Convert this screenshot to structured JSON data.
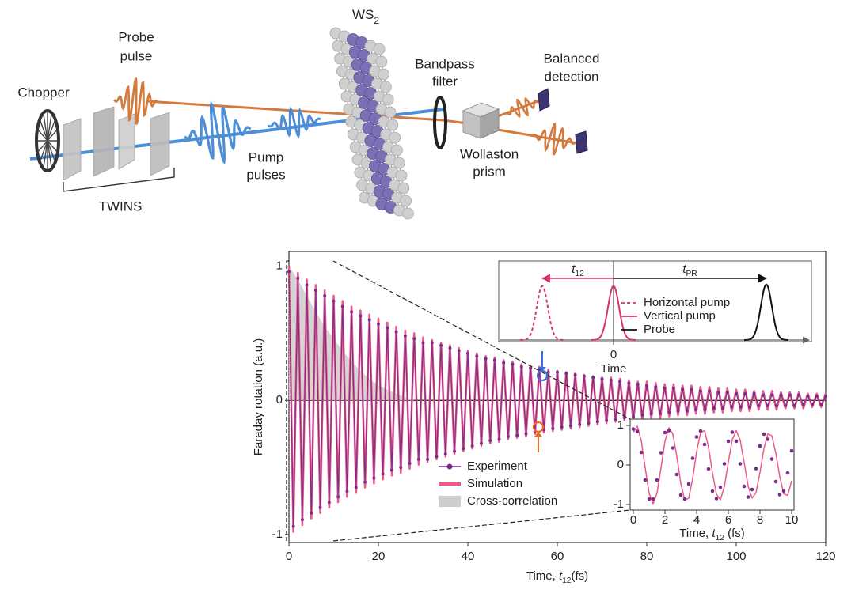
{
  "diagram": {
    "probe_pulse": [
      "Probe",
      "pulse"
    ],
    "chopper": "Chopper",
    "twins": "TWINS",
    "pump_pulses": [
      "Pump",
      "pulses"
    ],
    "ws2": {
      "text": "WS",
      "subscript": "2"
    },
    "bandpass_filter": [
      "Bandpass",
      "filter"
    ],
    "balanced_detection": [
      "Balanced",
      "detection"
    ],
    "wollaston_prism": [
      "Wollaston",
      "prism"
    ]
  },
  "chart_data": [
    {
      "type": "line",
      "ylabel": "Faraday rotation (a.u.)",
      "xlabel": {
        "text": "Time, ",
        "symbol": "t",
        "subscript": "12",
        "unit": "(fs)"
      },
      "x": [
        0,
        1,
        2,
        3,
        4,
        5,
        6,
        7,
        8,
        9,
        10,
        11,
        12,
        13,
        14,
        15,
        16,
        17,
        18,
        19,
        20,
        21,
        22,
        23,
        24,
        25,
        26,
        27,
        28,
        29,
        30,
        31,
        32,
        33,
        34,
        35,
        36,
        37,
        38,
        39,
        40,
        41,
        42,
        43,
        44,
        45,
        46,
        47,
        48,
        49,
        50,
        51,
        52,
        53,
        54,
        55,
        56,
        57,
        58,
        59,
        60,
        61,
        62,
        63,
        64,
        65,
        66,
        67,
        68,
        69,
        70,
        71,
        72,
        73,
        74,
        75,
        76,
        77,
        78,
        79,
        80,
        81,
        82,
        83,
        84,
        85,
        86,
        87,
        88,
        89,
        90,
        91,
        92,
        93,
        94,
        95,
        96,
        97,
        98,
        99,
        100,
        101,
        102,
        103,
        104,
        105,
        106,
        107,
        108,
        109,
        110,
        111,
        112,
        113,
        114,
        115,
        116,
        117,
        118,
        119,
        120
      ],
      "xlim": [
        0,
        120
      ],
      "xticks": [
        0,
        20,
        40,
        60,
        80,
        100,
        120
      ],
      "ylim": [
        -1.06,
        1.11
      ],
      "yticks": [
        -1,
        0,
        1
      ],
      "zero_line": true,
      "legend": "lower center",
      "series": [
        {
          "name": "Experiment",
          "color": "#7b2d8e",
          "style": "line+markers",
          "values": [
            0.96,
            -0.94,
            0.91,
            -0.89,
            0.86,
            -0.84,
            0.82,
            -0.8,
            0.78,
            -0.76,
            0.74,
            -0.72,
            0.7,
            -0.68,
            0.66,
            -0.65,
            0.63,
            -0.61,
            0.6,
            -0.58,
            0.57,
            -0.55,
            0.54,
            -0.52,
            0.51,
            -0.5,
            0.48,
            -0.47,
            0.46,
            -0.44,
            0.43,
            -0.44,
            0.43,
            -0.42,
            0.41,
            -0.4,
            0.39,
            -0.38,
            0.37,
            -0.36,
            0.35,
            -0.34,
            0.33,
            -0.32,
            0.31,
            -0.3,
            0.3,
            -0.29,
            0.28,
            -0.27,
            0.27,
            -0.26,
            0.25,
            -0.25,
            0.24,
            -0.23,
            0.23,
            -0.22,
            0.21,
            -0.21,
            0.21,
            -0.2,
            0.2,
            -0.19,
            0.19,
            -0.18,
            0.18,
            -0.17,
            0.17,
            -0.16,
            0.16,
            -0.15,
            0.15,
            -0.14,
            0.14,
            -0.13,
            0.13,
            -0.12,
            0.12,
            -0.11,
            0.11,
            -0.1,
            0.1,
            -0.1,
            0.09,
            -0.09,
            0.09,
            -0.08,
            0.08,
            -0.08,
            0.08,
            -0.07,
            0.07,
            -0.07,
            0.07,
            -0.06,
            0.06,
            -0.06,
            0.06,
            -0.05,
            0.05,
            -0.05,
            0.05,
            -0.05,
            0.05,
            -0.04,
            0.04,
            -0.04,
            0.04,
            -0.04,
            0.04,
            -0.04,
            0.04,
            -0.04,
            0.04,
            -0.03,
            0.03,
            -0.03,
            0.03,
            -0.03,
            0.03
          ]
        },
        {
          "name": "Simulation",
          "color": "#ec5a85",
          "style": "line",
          "values": [
            1.0,
            -0.98,
            0.95,
            -0.93,
            0.9,
            -0.88,
            0.86,
            -0.84,
            0.82,
            -0.8,
            0.78,
            -0.76,
            0.74,
            -0.72,
            0.7,
            -0.69,
            0.67,
            -0.65,
            0.64,
            -0.62,
            0.61,
            -0.59,
            0.58,
            -0.56,
            0.55,
            -0.54,
            0.52,
            -0.51,
            0.5,
            -0.48,
            0.47,
            -0.46,
            0.45,
            -0.44,
            0.43,
            -0.42,
            0.41,
            -0.4,
            0.39,
            -0.38,
            0.37,
            -0.36,
            0.35,
            -0.34,
            0.33,
            -0.32,
            0.32,
            -0.31,
            0.3,
            -0.29,
            0.29,
            -0.28,
            0.27,
            -0.27,
            0.26,
            -0.25,
            0.25,
            -0.24,
            0.23,
            -0.23,
            0.22,
            -0.22,
            0.21,
            -0.21,
            0.2,
            -0.2,
            0.19,
            -0.19,
            0.18,
            -0.18,
            0.17,
            -0.17,
            0.17,
            -0.16,
            0.16,
            -0.15,
            0.15,
            -0.15,
            0.14,
            -0.14,
            0.14,
            -0.13,
            0.13,
            -0.13,
            0.12,
            -0.12,
            0.12,
            -0.11,
            0.11,
            -0.11,
            0.11,
            -0.1,
            0.1,
            -0.1,
            0.1,
            -0.09,
            0.09,
            -0.09,
            0.09,
            -0.08,
            0.08,
            -0.08,
            0.08,
            -0.08,
            0.07,
            -0.07,
            0.07,
            -0.07,
            0.07,
            -0.07,
            0.06,
            -0.06,
            0.06,
            -0.06,
            0.06,
            -0.06,
            0.05,
            -0.05,
            0.05,
            -0.05,
            0.05
          ]
        },
        {
          "name": "Cross-correlation",
          "color": "#cdcdcd",
          "style": "area",
          "x": [
            0,
            2,
            4,
            6,
            8,
            10,
            12,
            14,
            16,
            18,
            20,
            24,
            28
          ],
          "values": [
            1,
            0.9,
            0.78,
            0.66,
            0.55,
            0.46,
            0.37,
            0.29,
            0.22,
            0.16,
            0.11,
            0.05,
            0
          ]
        }
      ]
    },
    {
      "type": "pulse",
      "xlabel": "Time",
      "xlim": [
        -14,
        24.5
      ],
      "xticks": [
        0
      ],
      "ylim": [
        0,
        1
      ],
      "legend": "upper right",
      "annotations": [
        {
          "symbol": "t",
          "subscript": "12"
        },
        {
          "symbol": "t",
          "subscript": "PR"
        }
      ],
      "series": [
        {
          "name": "Horizontal pump",
          "color": "#d6336c",
          "dashed": true,
          "center": -9,
          "height": 0.76,
          "width": 0.7
        },
        {
          "name": "Vertical pump",
          "color": "#d6336c",
          "dashed": false,
          "center": 0,
          "height": 0.76,
          "width": 0.7
        },
        {
          "name": "Probe",
          "color": "#111111",
          "dashed": false,
          "center": 19.3,
          "height": 0.78,
          "width": 0.7
        }
      ]
    },
    {
      "type": "line",
      "xlabel": {
        "text": "Time, ",
        "symbol": "t",
        "subscript": "12",
        "unit": " (fs)"
      },
      "x": [
        0,
        0.25,
        0.5,
        0.75,
        1,
        1.25,
        1.5,
        1.75,
        2,
        2.25,
        2.5,
        2.75,
        3,
        3.25,
        3.5,
        3.75,
        4,
        4.25,
        4.5,
        4.75,
        5,
        5.25,
        5.5,
        5.75,
        6,
        6.25,
        6.5,
        6.75,
        7,
        7.25,
        7.5,
        7.75,
        8,
        8.25,
        8.5,
        8.75,
        9,
        9.25,
        9.5,
        9.75,
        10
      ],
      "xlim": [
        -0.2,
        10.15
      ],
      "xticks": [
        0,
        2,
        4,
        6,
        8,
        10
      ],
      "ylim": [
        -1.14,
        1.16
      ],
      "yticks": [
        -1,
        0,
        1
      ],
      "series": [
        {
          "color": "#ec5a85",
          "style": "line",
          "values": [
            0.83,
            0.98,
            0.62,
            -0.07,
            -0.72,
            -0.98,
            -0.71,
            -0.07,
            0.6,
            0.94,
            0.78,
            0.21,
            -0.47,
            -0.89,
            -0.84,
            -0.34,
            0.34,
            0.82,
            0.87,
            0.45,
            -0.2,
            -0.74,
            -0.88,
            -0.55,
            0.07,
            0.64,
            0.87,
            0.63,
            0.06,
            -0.53,
            -0.84,
            -0.7,
            -0.19,
            0.42,
            0.79,
            0.74,
            0.3,
            -0.3,
            -0.73,
            -0.77,
            -0.4
          ]
        },
        {
          "color": "#7b2d8e",
          "style": "markers",
          "values": [
            0.91,
            0.85,
            0.32,
            -0.38,
            -0.86,
            -0.86,
            -0.38,
            0.31,
            0.82,
            0.87,
            0.43,
            -0.24,
            -0.76,
            -0.86,
            -0.48,
            0.17,
            0.71,
            0.86,
            0.52,
            -0.1,
            -0.66,
            -0.85,
            -0.56,
            0.03,
            0.6,
            0.83,
            0.6,
            0.03,
            -0.54,
            -0.81,
            -0.62,
            -0.09,
            0.48,
            0.78,
            0.65,
            0.15,
            -0.42,
            -0.75,
            -0.66,
            -0.2,
            0.36
          ]
        }
      ]
    }
  ]
}
